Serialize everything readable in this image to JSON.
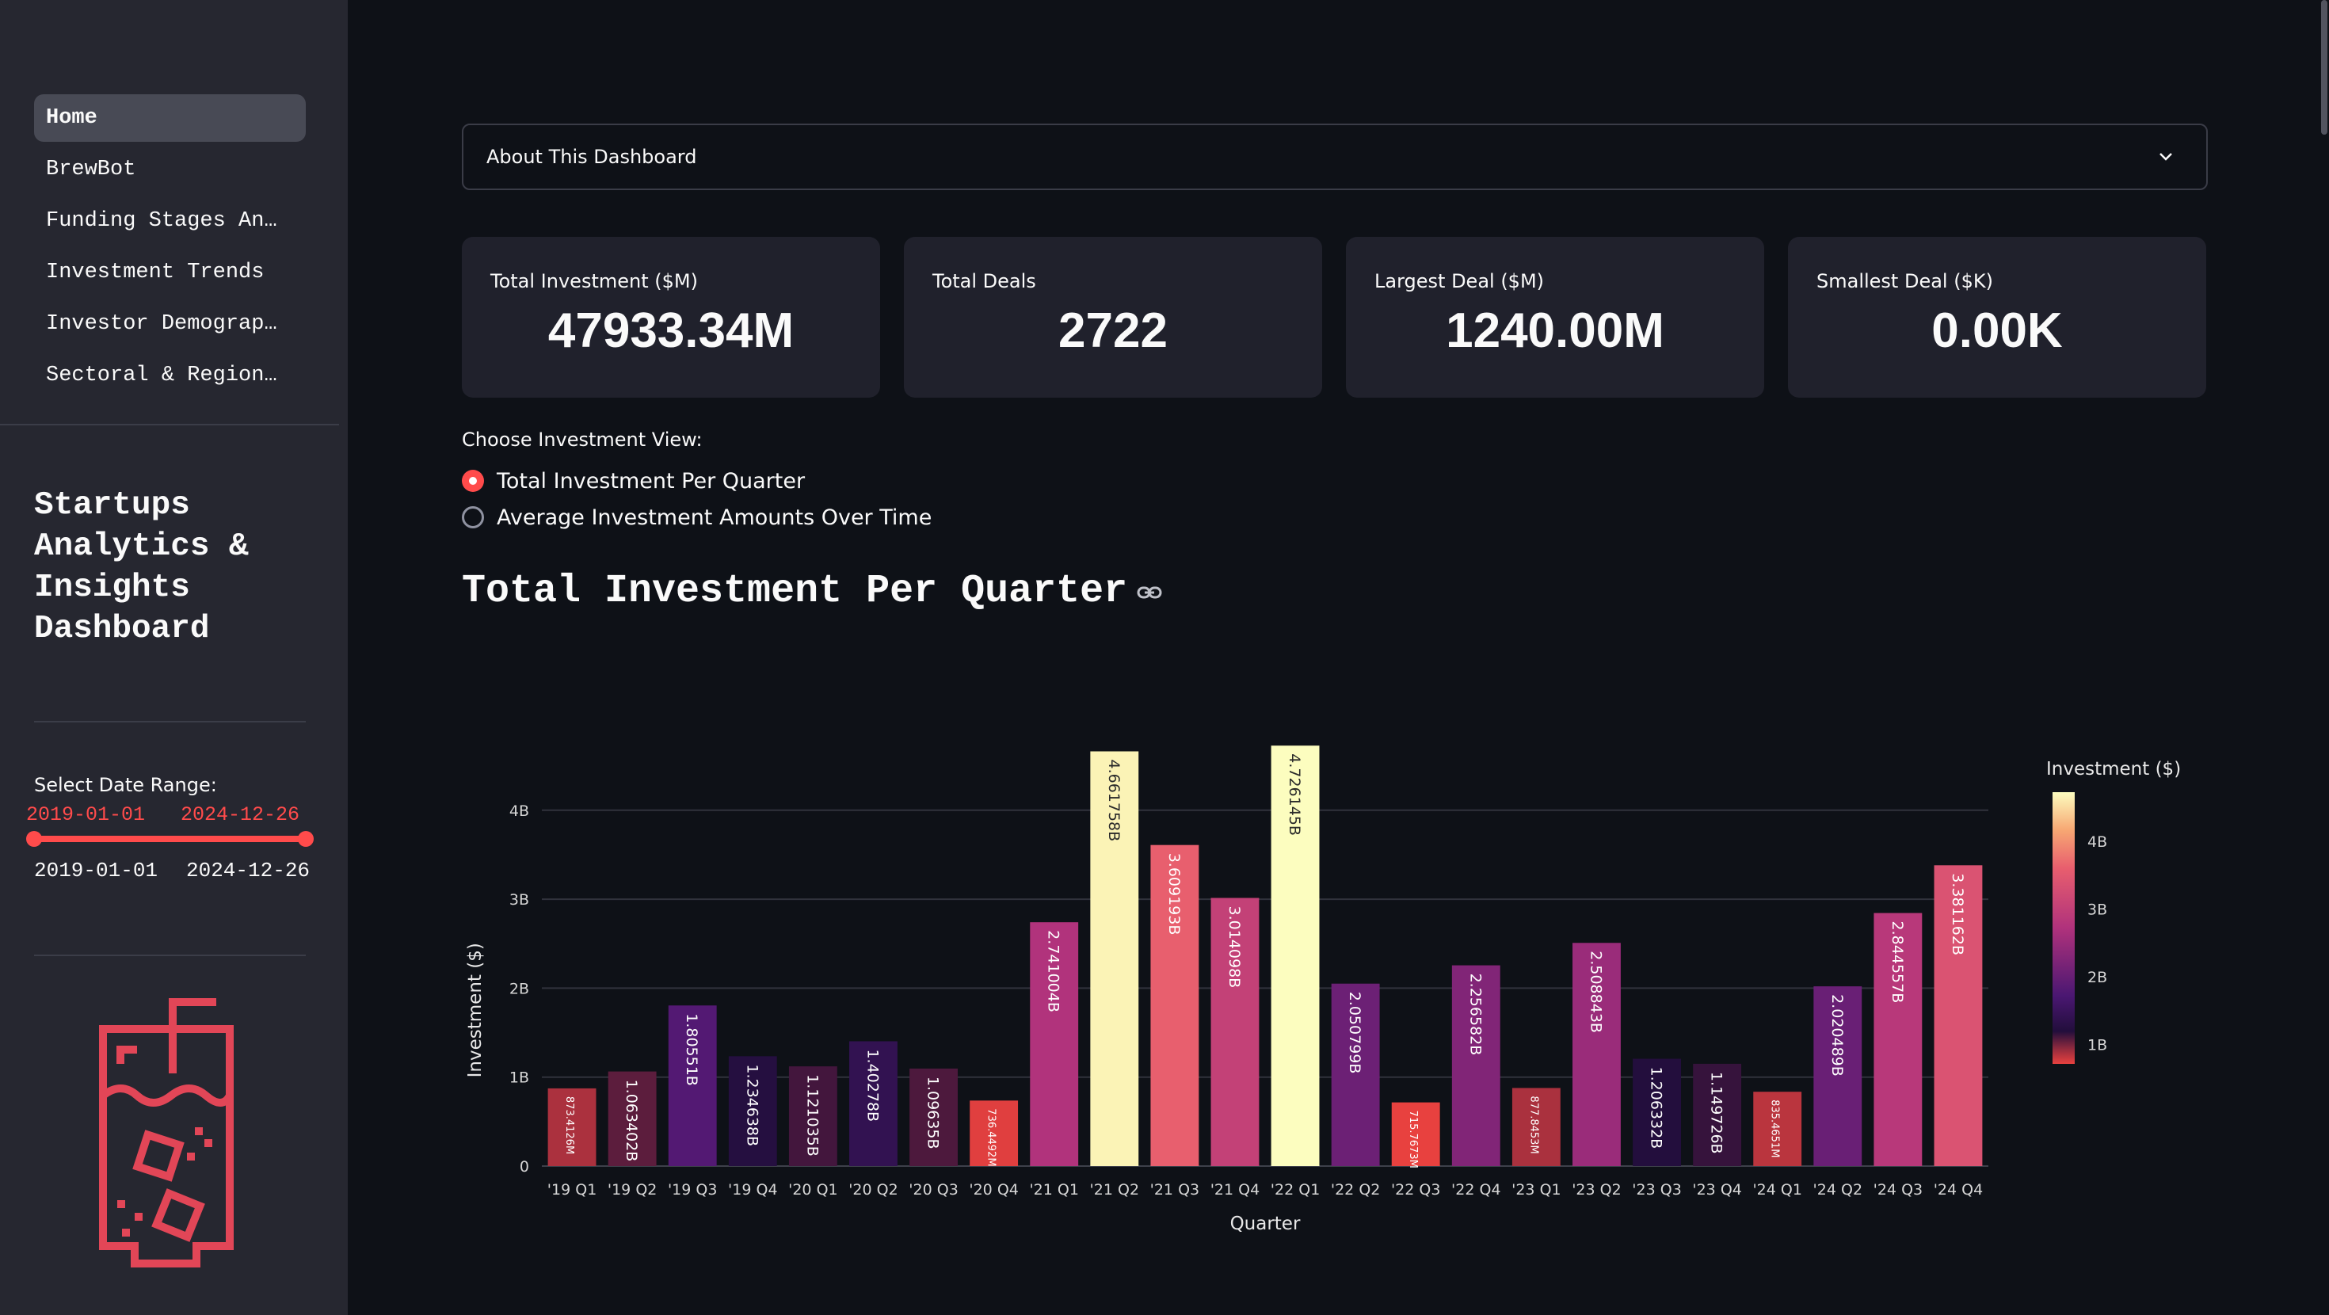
{
  "sidebar": {
    "nav": [
      {
        "label": "Home",
        "active": true
      },
      {
        "label": "BrewBot",
        "active": false
      },
      {
        "label": "Funding Stages An…",
        "active": false
      },
      {
        "label": "Investment Trends",
        "active": false
      },
      {
        "label": "Investor Demograp…",
        "active": false
      },
      {
        "label": "Sectoral & Region…",
        "active": false
      }
    ],
    "title": "Startups Analytics & Insights Dashboard",
    "date_range": {
      "label": "Select Date Range:",
      "start": "2019-01-01",
      "end": "2024-12-26"
    },
    "logo_icon": "iced-drink-icon"
  },
  "expander": {
    "label": "About This Dashboard",
    "icon": "chevron-down-icon"
  },
  "metrics": [
    {
      "label": "Total Investment ($M)",
      "value": "47933.34M"
    },
    {
      "label": "Total Deals",
      "value": "2722"
    },
    {
      "label": "Largest Deal ($M)",
      "value": "1240.00M"
    },
    {
      "label": "Smallest Deal ($K)",
      "value": "0.00K"
    }
  ],
  "investment_view": {
    "label": "Choose Investment View:",
    "options": [
      {
        "label": "Total Investment Per Quarter",
        "selected": true
      },
      {
        "label": "Average Investment Amounts Over Time",
        "selected": false
      }
    ]
  },
  "chart_heading": "Total Investment Per Quarter",
  "colors": {
    "accent": "#ff4b4b",
    "background": "#0e1117",
    "sidebar": "#262730",
    "card": "#20212c"
  },
  "chart_data": {
    "type": "bar",
    "xlabel": "Quarter",
    "ylabel": "Investment ($)",
    "ylim": [
      0,
      4750000000
    ],
    "yticks": [
      {
        "value": 0,
        "label": "0"
      },
      {
        "value": 1000000000,
        "label": "1B"
      },
      {
        "value": 2000000000,
        "label": "2B"
      },
      {
        "value": 3000000000,
        "label": "3B"
      },
      {
        "value": 4000000000,
        "label": "4B"
      }
    ],
    "grid": true,
    "categories": [
      "'19 Q1",
      "'19 Q2",
      "'19 Q3",
      "'19 Q4",
      "'20 Q1",
      "'20 Q2",
      "'20 Q3",
      "'20 Q4",
      "'21 Q1",
      "'21 Q2",
      "'21 Q3",
      "'21 Q4",
      "'22 Q1",
      "'22 Q2",
      "'22 Q3",
      "'22 Q4",
      "'23 Q1",
      "'23 Q2",
      "'23 Q3",
      "'23 Q4",
      "'24 Q1",
      "'24 Q2",
      "'24 Q3",
      "'24 Q4"
    ],
    "values": [
      873412600,
      1063402000,
      1805510000,
      1234638000,
      1121035000,
      1402780000,
      1096350000,
      736449200,
      2741004000,
      4661758000,
      3609193000,
      3014098000,
      4726145000,
      2050799000,
      715767300,
      2256582000,
      877845300,
      2508843000,
      1206332000,
      1149726000,
      835465100,
      2020489000,
      2844557000,
      3381162000
    ],
    "data_labels": [
      "873.4126M",
      "1.063402B",
      "1.80551B",
      "1.234638B",
      "1.121035B",
      "1.40278B",
      "1.09635B",
      "736.4492M",
      "2.741004B",
      "4.661758B",
      "3.609193B",
      "3.014098B",
      "4.726145B",
      "2.050799B",
      "715.7673M",
      "2.256582B",
      "877.8453M",
      "2.508843B",
      "1.206332B",
      "1.149726B",
      "835.4651M",
      "2.020489B",
      "2.844557B",
      "3.381162B"
    ],
    "colorbar": {
      "title": "Investment ($)",
      "ticks": [
        {
          "value": 1000000000,
          "label": "1B"
        },
        {
          "value": 2000000000,
          "label": "2B"
        },
        {
          "value": 3000000000,
          "label": "3B"
        },
        {
          "value": 4000000000,
          "label": "4B"
        }
      ],
      "range": [
        715767300,
        4726145000
      ],
      "colorscale": [
        [
          0.0,
          "#e8413f"
        ],
        [
          0.05,
          "#9b2d3e"
        ],
        [
          0.12,
          "#220e3c"
        ],
        [
          0.25,
          "#4a1772"
        ],
        [
          0.5,
          "#b0327c"
        ],
        [
          0.72,
          "#e85e6e"
        ],
        [
          0.86,
          "#f7a773"
        ],
        [
          1.0,
          "#fcfdbf"
        ]
      ]
    },
    "legend": "right"
  }
}
